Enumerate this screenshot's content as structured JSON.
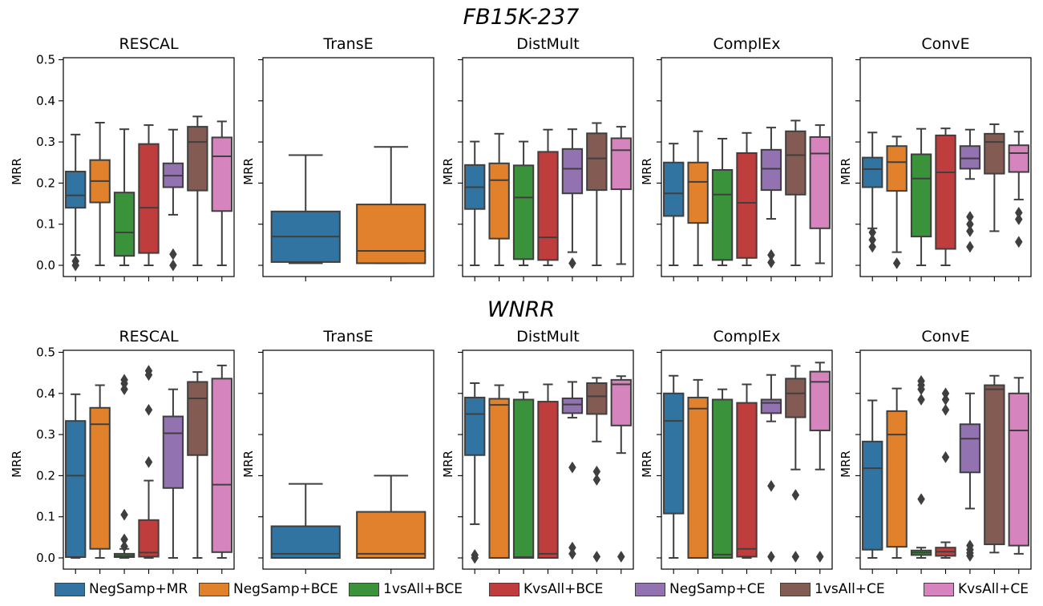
{
  "chart_data": [
    {
      "type": "boxplot",
      "title": "FB15K-237",
      "ylabel": "MRR",
      "ylim": [
        -0.02,
        0.5
      ],
      "yticks": [
        "0.0",
        "0.1",
        "0.2",
        "0.3",
        "0.4",
        "0.5"
      ],
      "panels": [
        {
          "title": "RESCAL",
          "boxes": [
            {
              "series": 0,
              "whislo": 0.025,
              "q1": 0.14,
              "med": 0.17,
              "q3": 0.228,
              "whishi": 0.318,
              "fliers": [
                0.01,
                0.0
              ]
            },
            {
              "series": 1,
              "whislo": 0.0,
              "q1": 0.153,
              "med": 0.205,
              "q3": 0.256,
              "whishi": 0.347,
              "fliers": []
            },
            {
              "series": 2,
              "whislo": 0.0,
              "q1": 0.023,
              "med": 0.08,
              "q3": 0.177,
              "whishi": 0.331,
              "fliers": []
            },
            {
              "series": 3,
              "whislo": 0.0,
              "q1": 0.03,
              "med": 0.14,
              "q3": 0.295,
              "whishi": 0.341,
              "fliers": []
            },
            {
              "series": 4,
              "whislo": 0.123,
              "q1": 0.19,
              "med": 0.218,
              "q3": 0.248,
              "whishi": 0.33,
              "fliers": [
                0.027,
                0.0
              ]
            },
            {
              "series": 5,
              "whislo": 0.0,
              "q1": 0.182,
              "med": 0.3,
              "q3": 0.337,
              "whishi": 0.362,
              "fliers": []
            },
            {
              "series": 6,
              "whislo": 0.0,
              "q1": 0.132,
              "med": 0.265,
              "q3": 0.311,
              "whishi": 0.35,
              "fliers": []
            }
          ]
        },
        {
          "title": "TransE",
          "boxes": [
            {
              "series": 0,
              "whislo": 0.005,
              "q1": 0.008,
              "med": 0.07,
              "q3": 0.131,
              "whishi": 0.268,
              "fliers": []
            },
            {
              "series": 1,
              "whislo": 0.005,
              "q1": 0.005,
              "med": 0.035,
              "q3": 0.148,
              "whishi": 0.288,
              "fliers": []
            }
          ]
        },
        {
          "title": "DistMult",
          "boxes": [
            {
              "series": 0,
              "whislo": 0.0,
              "q1": 0.137,
              "med": 0.19,
              "q3": 0.244,
              "whishi": 0.301,
              "fliers": []
            },
            {
              "series": 1,
              "whislo": 0.0,
              "q1": 0.065,
              "med": 0.207,
              "q3": 0.248,
              "whishi": 0.32,
              "fliers": []
            },
            {
              "series": 2,
              "whislo": 0.0,
              "q1": 0.015,
              "med": 0.165,
              "q3": 0.243,
              "whishi": 0.301,
              "fliers": []
            },
            {
              "series": 3,
              "whislo": 0.0,
              "q1": 0.013,
              "med": 0.068,
              "q3": 0.276,
              "whishi": 0.33,
              "fliers": []
            },
            {
              "series": 4,
              "whislo": 0.032,
              "q1": 0.175,
              "med": 0.235,
              "q3": 0.283,
              "whishi": 0.331,
              "fliers": [
                0.005
              ]
            },
            {
              "series": 5,
              "whislo": 0.0,
              "q1": 0.183,
              "med": 0.26,
              "q3": 0.321,
              "whishi": 0.346,
              "fliers": []
            },
            {
              "series": 6,
              "whislo": 0.003,
              "q1": 0.185,
              "med": 0.28,
              "q3": 0.309,
              "whishi": 0.337,
              "fliers": []
            }
          ]
        },
        {
          "title": "ComplEx",
          "boxes": [
            {
              "series": 0,
              "whislo": 0.0,
              "q1": 0.12,
              "med": 0.175,
              "q3": 0.25,
              "whishi": 0.296,
              "fliers": []
            },
            {
              "series": 1,
              "whislo": 0.0,
              "q1": 0.103,
              "med": 0.203,
              "q3": 0.25,
              "whishi": 0.326,
              "fliers": []
            },
            {
              "series": 2,
              "whislo": 0.0,
              "q1": 0.013,
              "med": 0.172,
              "q3": 0.232,
              "whishi": 0.308,
              "fliers": []
            },
            {
              "series": 3,
              "whislo": 0.0,
              "q1": 0.018,
              "med": 0.152,
              "q3": 0.273,
              "whishi": 0.322,
              "fliers": []
            },
            {
              "series": 4,
              "whislo": 0.113,
              "q1": 0.183,
              "med": 0.235,
              "q3": 0.281,
              "whishi": 0.335,
              "fliers": [
                0.025,
                0.007
              ]
            },
            {
              "series": 5,
              "whislo": 0.0,
              "q1": 0.172,
              "med": 0.268,
              "q3": 0.326,
              "whishi": 0.352,
              "fliers": []
            },
            {
              "series": 6,
              "whislo": 0.005,
              "q1": 0.09,
              "med": 0.272,
              "q3": 0.312,
              "whishi": 0.341,
              "fliers": []
            }
          ]
        },
        {
          "title": "ConvE",
          "boxes": [
            {
              "series": 0,
              "whislo": 0.09,
              "q1": 0.19,
              "med": 0.234,
              "q3": 0.262,
              "whishi": 0.323,
              "fliers": [
                0.08,
                0.062,
                0.045
              ]
            },
            {
              "series": 1,
              "whislo": 0.032,
              "q1": 0.181,
              "med": 0.251,
              "q3": 0.29,
              "whishi": 0.313,
              "fliers": [
                0.005
              ]
            },
            {
              "series": 2,
              "whislo": 0.0,
              "q1": 0.07,
              "med": 0.211,
              "q3": 0.27,
              "whishi": 0.332,
              "fliers": []
            },
            {
              "series": 3,
              "whislo": 0.0,
              "q1": 0.04,
              "med": 0.226,
              "q3": 0.316,
              "whishi": 0.333,
              "fliers": []
            },
            {
              "series": 4,
              "whislo": 0.21,
              "q1": 0.235,
              "med": 0.26,
              "q3": 0.29,
              "whishi": 0.33,
              "fliers": [
                0.118,
                0.1,
                0.083,
                0.045
              ]
            },
            {
              "series": 5,
              "whislo": 0.083,
              "q1": 0.223,
              "med": 0.3,
              "q3": 0.32,
              "whishi": 0.343,
              "fliers": []
            },
            {
              "series": 6,
              "whislo": 0.16,
              "q1": 0.227,
              "med": 0.273,
              "q3": 0.292,
              "whishi": 0.325,
              "fliers": [
                0.128,
                0.112,
                0.057
              ]
            }
          ]
        }
      ]
    },
    {
      "type": "boxplot",
      "title": "WNRR",
      "ylabel": "MRR",
      "ylim": [
        -0.02,
        0.5
      ],
      "yticks": [
        "0.0",
        "0.1",
        "0.2",
        "0.3",
        "0.4",
        "0.5"
      ],
      "panels": [
        {
          "title": "RESCAL",
          "boxes": [
            {
              "series": 0,
              "whislo": 0.0,
              "q1": 0.002,
              "med": 0.2,
              "q3": 0.333,
              "whishi": 0.398,
              "fliers": []
            },
            {
              "series": 1,
              "whislo": 0.0,
              "q1": 0.022,
              "med": 0.325,
              "q3": 0.365,
              "whishi": 0.42,
              "fliers": []
            },
            {
              "series": 2,
              "whislo": 0.0,
              "q1": 0.002,
              "med": 0.005,
              "q3": 0.01,
              "whishi": 0.022,
              "fliers": [
                0.433,
                0.424,
                0.41,
                0.105,
                0.045,
                0.028
              ]
            },
            {
              "series": 3,
              "whislo": 0.0,
              "q1": 0.003,
              "med": 0.013,
              "q3": 0.092,
              "whishi": 0.188,
              "fliers": [
                0.455,
                0.445,
                0.36,
                0.233
              ]
            },
            {
              "series": 4,
              "whislo": 0.0,
              "q1": 0.17,
              "med": 0.303,
              "q3": 0.344,
              "whishi": 0.41,
              "fliers": []
            },
            {
              "series": 5,
              "whislo": 0.0,
              "q1": 0.25,
              "med": 0.388,
              "q3": 0.428,
              "whishi": 0.452,
              "fliers": []
            },
            {
              "series": 6,
              "whislo": 0.0,
              "q1": 0.014,
              "med": 0.178,
              "q3": 0.436,
              "whishi": 0.468,
              "fliers": []
            }
          ]
        },
        {
          "title": "TransE",
          "boxes": [
            {
              "series": 0,
              "whislo": 0.0,
              "q1": 0.0,
              "med": 0.01,
              "q3": 0.077,
              "whishi": 0.18,
              "fliers": []
            },
            {
              "series": 1,
              "whislo": 0.0,
              "q1": 0.0,
              "med": 0.01,
              "q3": 0.112,
              "whishi": 0.2,
              "fliers": []
            }
          ]
        },
        {
          "title": "DistMult",
          "boxes": [
            {
              "series": 0,
              "whislo": 0.082,
              "q1": 0.25,
              "med": 0.35,
              "q3": 0.39,
              "whishi": 0.425,
              "fliers": [
                0.007,
                0.0
              ]
            },
            {
              "series": 1,
              "whislo": 0.0,
              "q1": 0.0,
              "med": 0.372,
              "q3": 0.387,
              "whishi": 0.42,
              "fliers": []
            },
            {
              "series": 2,
              "whislo": 0.0,
              "q1": 0.0,
              "med": 0.002,
              "q3": 0.385,
              "whishi": 0.403,
              "fliers": []
            },
            {
              "series": 3,
              "whislo": 0.0,
              "q1": 0.0,
              "med": 0.01,
              "q3": 0.38,
              "whishi": 0.422,
              "fliers": []
            },
            {
              "series": 4,
              "whislo": 0.341,
              "q1": 0.352,
              "med": 0.373,
              "q3": 0.388,
              "whishi": 0.428,
              "fliers": [
                0.22,
                0.025,
                0.01
              ]
            },
            {
              "series": 5,
              "whislo": 0.283,
              "q1": 0.35,
              "med": 0.393,
              "q3": 0.425,
              "whishi": 0.438,
              "fliers": [
                0.21,
                0.19,
                0.003
              ]
            },
            {
              "series": 6,
              "whislo": 0.255,
              "q1": 0.322,
              "med": 0.422,
              "q3": 0.433,
              "whishi": 0.442,
              "fliers": [
                0.003
              ]
            }
          ]
        },
        {
          "title": "ComplEx",
          "boxes": [
            {
              "series": 0,
              "whislo": 0.0,
              "q1": 0.108,
              "med": 0.333,
              "q3": 0.4,
              "whishi": 0.443,
              "fliers": []
            },
            {
              "series": 1,
              "whislo": 0.0,
              "q1": 0.0,
              "med": 0.363,
              "q3": 0.39,
              "whishi": 0.433,
              "fliers": []
            },
            {
              "series": 2,
              "whislo": 0.0,
              "q1": 0.0,
              "med": 0.008,
              "q3": 0.385,
              "whishi": 0.41,
              "fliers": []
            },
            {
              "series": 3,
              "whislo": 0.0,
              "q1": 0.003,
              "med": 0.022,
              "q3": 0.377,
              "whishi": 0.422,
              "fliers": []
            },
            {
              "series": 4,
              "whislo": 0.332,
              "q1": 0.352,
              "med": 0.377,
              "q3": 0.385,
              "whishi": 0.445,
              "fliers": [
                0.175,
                0.003
              ]
            },
            {
              "series": 5,
              "whislo": 0.215,
              "q1": 0.342,
              "med": 0.4,
              "q3": 0.436,
              "whishi": 0.467,
              "fliers": [
                0.153,
                0.003
              ]
            },
            {
              "series": 6,
              "whislo": 0.215,
              "q1": 0.31,
              "med": 0.428,
              "q3": 0.453,
              "whishi": 0.475,
              "fliers": [
                0.003
              ]
            }
          ]
        },
        {
          "title": "ConvE",
          "boxes": [
            {
              "series": 0,
              "whislo": 0.0,
              "q1": 0.02,
              "med": 0.218,
              "q3": 0.283,
              "whishi": 0.383,
              "fliers": []
            },
            {
              "series": 1,
              "whislo": 0.0,
              "q1": 0.027,
              "med": 0.3,
              "q3": 0.357,
              "whishi": 0.412,
              "fliers": []
            },
            {
              "series": 2,
              "whislo": 0.0,
              "q1": 0.007,
              "med": 0.013,
              "q3": 0.018,
              "whishi": 0.025,
              "fliers": [
                0.43,
                0.42,
                0.41,
                0.385,
                0.143
              ]
            },
            {
              "series": 3,
              "whislo": 0.0,
              "q1": 0.005,
              "med": 0.015,
              "q3": 0.025,
              "whishi": 0.038,
              "fliers": [
                0.4,
                0.385,
                0.36,
                0.245
              ]
            },
            {
              "series": 4,
              "whislo": 0.12,
              "q1": 0.208,
              "med": 0.29,
              "q3": 0.325,
              "whishi": 0.4,
              "fliers": [
                0.03,
                0.02,
                0.012,
                0.005
              ]
            },
            {
              "series": 5,
              "whislo": 0.013,
              "q1": 0.033,
              "med": 0.41,
              "q3": 0.42,
              "whishi": 0.443,
              "fliers": []
            },
            {
              "series": 6,
              "whislo": 0.01,
              "q1": 0.03,
              "med": 0.31,
              "q3": 0.4,
              "whishi": 0.438,
              "fliers": []
            }
          ]
        }
      ]
    }
  ],
  "legend": {
    "placement": "bottom",
    "items": [
      {
        "label": "NegSamp+MR",
        "color": "#3274a1"
      },
      {
        "label": "NegSamp+BCE",
        "color": "#e1812c"
      },
      {
        "label": "1vsAll+BCE",
        "color": "#3a923a"
      },
      {
        "label": "KvsAll+BCE",
        "color": "#c03d3e"
      },
      {
        "label": "NegSamp+CE",
        "color": "#9372b2"
      },
      {
        "label": "1vsAll+CE",
        "color": "#845b53"
      },
      {
        "label": "KvsAll+CE",
        "color": "#d684bd"
      }
    ]
  },
  "styles": {
    "edge_color": "#3f3f3f",
    "axis_color": "#000000"
  }
}
